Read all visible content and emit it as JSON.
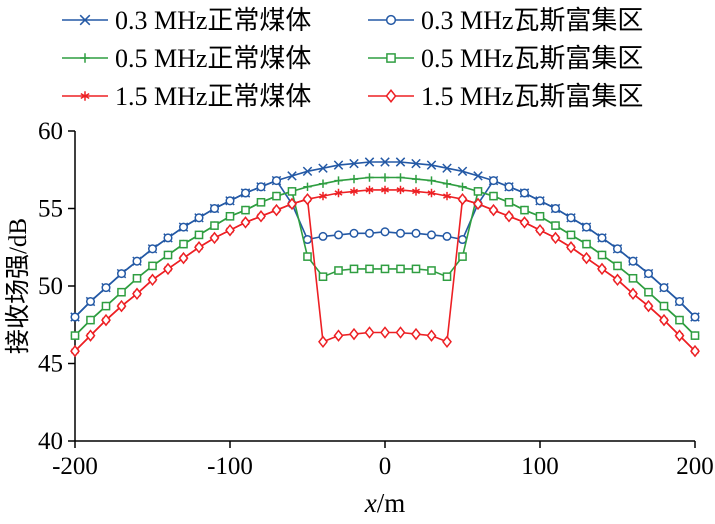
{
  "figure": {
    "background": "#ffffff"
  },
  "chart_data": {
    "type": "line",
    "title": "",
    "xlabel": "x/m",
    "ylabel": "接收场强/dB",
    "xlim": [
      -200,
      200
    ],
    "ylim": [
      40,
      60
    ],
    "xticks": [
      -200,
      -100,
      0,
      100,
      200
    ],
    "yticks": [
      40,
      45,
      50,
      55,
      60
    ],
    "grid": false,
    "legend_position": "top",
    "legend_order": [
      0,
      3,
      1,
      4,
      2,
      5
    ],
    "colors": {
      "blue": "#2459a5",
      "green": "#2f9e41",
      "red": "#ed2024",
      "axis": "#000000"
    },
    "x": [
      -200,
      -190,
      -180,
      -170,
      -160,
      -150,
      -140,
      -130,
      -120,
      -110,
      -100,
      -90,
      -80,
      -70,
      -60,
      -50,
      -40,
      -30,
      -20,
      -10,
      0,
      10,
      20,
      30,
      40,
      50,
      60,
      70,
      80,
      90,
      100,
      110,
      120,
      130,
      140,
      150,
      160,
      170,
      180,
      190,
      200
    ],
    "series": [
      {
        "name": "0.3 MHz正常煤体",
        "color": "#2459a5",
        "marker": "x",
        "values": [
          48.0,
          49.0,
          49.9,
          50.8,
          51.6,
          52.4,
          53.1,
          53.8,
          54.4,
          55.0,
          55.5,
          56.0,
          56.4,
          56.8,
          57.1,
          57.4,
          57.6,
          57.8,
          57.9,
          58.0,
          58.0,
          58.0,
          57.9,
          57.8,
          57.6,
          57.4,
          57.1,
          56.8,
          56.4,
          56.0,
          55.5,
          55.0,
          54.4,
          53.8,
          53.1,
          52.4,
          51.6,
          50.8,
          49.9,
          49.0,
          48.0
        ]
      },
      {
        "name": "0.5 MHz正常煤体",
        "color": "#2f9e41",
        "marker": "plus",
        "values": [
          46.8,
          47.8,
          48.7,
          49.6,
          50.5,
          51.3,
          52.0,
          52.7,
          53.3,
          53.9,
          54.5,
          54.9,
          55.4,
          55.8,
          56.1,
          56.4,
          56.6,
          56.8,
          56.9,
          57.0,
          57.0,
          57.0,
          56.9,
          56.8,
          56.6,
          56.4,
          56.1,
          55.8,
          55.4,
          54.9,
          54.5,
          53.9,
          53.3,
          52.7,
          52.0,
          51.3,
          50.5,
          49.6,
          48.7,
          47.8,
          46.8
        ]
      },
      {
        "name": "1.5 MHz正常煤体",
        "color": "#ed2024",
        "marker": "asterisk",
        "values": [
          45.8,
          46.8,
          47.8,
          48.7,
          49.5,
          50.4,
          51.1,
          51.8,
          52.5,
          53.1,
          53.6,
          54.1,
          54.5,
          54.9,
          55.3,
          55.6,
          55.8,
          56.0,
          56.1,
          56.2,
          56.2,
          56.2,
          56.1,
          56.0,
          55.8,
          55.6,
          55.3,
          54.9,
          54.5,
          54.1,
          53.6,
          53.1,
          52.5,
          51.8,
          51.1,
          50.4,
          49.5,
          48.7,
          47.8,
          46.8,
          45.8
        ]
      },
      {
        "name": "0.3 MHz瓦斯富集区",
        "color": "#2459a5",
        "marker": "circle",
        "values": [
          48.0,
          49.0,
          49.9,
          50.8,
          51.6,
          52.4,
          53.1,
          53.8,
          54.4,
          55.0,
          55.5,
          56.0,
          56.4,
          56.8,
          55.3,
          53.0,
          53.2,
          53.3,
          53.4,
          53.4,
          53.5,
          53.4,
          53.4,
          53.3,
          53.2,
          53.0,
          55.3,
          56.8,
          56.4,
          56.0,
          55.5,
          55.0,
          54.4,
          53.8,
          53.1,
          52.4,
          51.6,
          50.8,
          49.9,
          49.0,
          48.0
        ]
      },
      {
        "name": "0.5 MHz瓦斯富集区",
        "color": "#2f9e41",
        "marker": "square",
        "values": [
          46.8,
          47.8,
          48.7,
          49.6,
          50.5,
          51.3,
          52.0,
          52.7,
          53.3,
          53.9,
          54.5,
          54.9,
          55.4,
          55.8,
          56.1,
          51.9,
          50.6,
          51.0,
          51.1,
          51.1,
          51.1,
          51.1,
          51.1,
          51.0,
          50.6,
          51.9,
          56.1,
          55.8,
          55.4,
          54.9,
          54.5,
          53.9,
          53.3,
          52.7,
          52.0,
          51.3,
          50.5,
          49.6,
          48.7,
          47.8,
          46.8
        ]
      },
      {
        "name": "1.5 MHz瓦斯富集区",
        "color": "#ed2024",
        "marker": "diamond",
        "values": [
          45.8,
          46.8,
          47.8,
          48.7,
          49.5,
          50.4,
          51.1,
          51.8,
          52.5,
          53.1,
          53.6,
          54.1,
          54.5,
          54.9,
          55.3,
          55.6,
          46.4,
          46.8,
          46.9,
          47.0,
          47.0,
          47.0,
          46.9,
          46.8,
          46.4,
          55.6,
          55.3,
          54.9,
          54.5,
          54.1,
          53.6,
          53.1,
          52.5,
          51.8,
          51.1,
          50.4,
          49.5,
          48.7,
          47.8,
          46.8,
          45.8
        ]
      }
    ]
  }
}
